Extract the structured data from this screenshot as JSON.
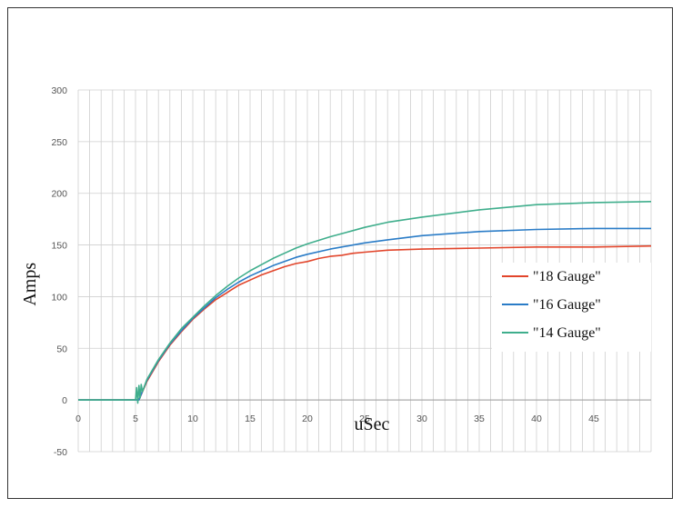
{
  "chart_data": {
    "type": "line",
    "title": "",
    "xlabel": "uSec",
    "ylabel": "Amps",
    "xlim": [
      0,
      50
    ],
    "ylim": [
      -50,
      300
    ],
    "x_ticks": [
      0,
      5,
      10,
      15,
      20,
      25,
      30,
      35,
      40,
      45
    ],
    "y_ticks": [
      -50,
      0,
      50,
      100,
      150,
      200,
      250,
      300
    ],
    "minor_x_step": 1,
    "grid": true,
    "legend_position": "right",
    "series": [
      {
        "name": "\"18 Gauge\"",
        "color": "#e2452b",
        "x": [
          0,
          5,
          5.3,
          6,
          7,
          8,
          9,
          10,
          11,
          12,
          13,
          14,
          15,
          16,
          17,
          18,
          19,
          20,
          21,
          22,
          23,
          24,
          25,
          27,
          30,
          35,
          40,
          45,
          50
        ],
        "y": [
          0,
          0,
          0,
          18,
          37,
          53,
          66,
          78,
          88,
          97,
          104,
          111,
          116,
          121,
          125,
          129,
          132,
          134,
          137,
          139,
          140,
          142,
          143,
          145,
          146,
          147,
          148,
          148,
          149
        ]
      },
      {
        "name": "\"16 Gauge\"",
        "color": "#2a7cc7",
        "x": [
          0,
          5,
          5.3,
          6,
          7,
          8,
          9,
          10,
          11,
          12,
          13,
          14,
          15,
          16,
          17,
          18,
          19,
          20,
          22,
          24,
          25,
          27,
          30,
          35,
          40,
          45,
          50
        ],
        "y": [
          0,
          0,
          0,
          19,
          38,
          54,
          67,
          79,
          89,
          99,
          107,
          114,
          120,
          125,
          130,
          134,
          138,
          141,
          146,
          150,
          152,
          155,
          159,
          163,
          165,
          166,
          166
        ]
      },
      {
        "name": "\"14 Gauge\"",
        "color": "#3fae8c",
        "x": [
          0,
          5,
          5.1,
          5.2,
          5.3,
          5.4,
          5.5,
          5.6,
          6,
          7,
          8,
          9,
          10,
          11,
          12,
          13,
          14,
          15,
          16,
          17,
          18,
          19,
          20,
          22,
          24,
          25,
          27,
          30,
          35,
          40,
          45,
          50
        ],
        "y": [
          0,
          0,
          12,
          -3,
          14,
          2,
          15,
          8,
          20,
          39,
          55,
          69,
          80,
          91,
          101,
          110,
          118,
          125,
          131,
          137,
          142,
          147,
          151,
          158,
          164,
          167,
          172,
          177,
          184,
          189,
          191,
          192
        ]
      }
    ]
  }
}
